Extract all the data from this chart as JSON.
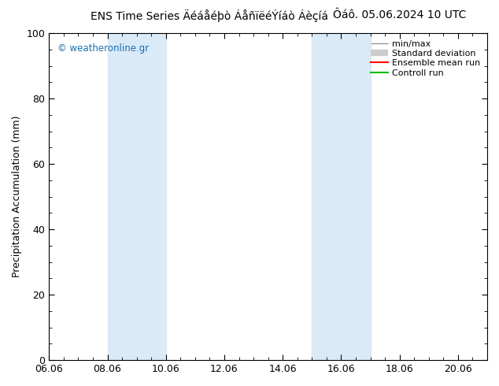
{
  "title_left": "ENS Time Series Äéáåéþò ÁåñïëéÝíáò Áèçíá",
  "title_right": "Ôáô. 05.06.2024 10 UTC",
  "ylabel": "Precipitation Accumulation (mm)",
  "watermark": "© weatheronline.gr",
  "xmin": 0.0,
  "xmax": 15.0,
  "ymin": 0,
  "ymax": 100,
  "xtick_labels": [
    "06.06",
    "08.06",
    "10.06",
    "12.06",
    "14.06",
    "16.06",
    "18.06",
    "20.06"
  ],
  "xtick_positions": [
    0.0,
    2.0,
    4.0,
    6.0,
    8.0,
    10.0,
    12.0,
    14.0
  ],
  "ytick_labels": [
    "0",
    "20",
    "40",
    "60",
    "80",
    "100"
  ],
  "ytick_positions": [
    0,
    20,
    40,
    60,
    80,
    100
  ],
  "shade_bands": [
    {
      "xstart": 2.0,
      "xend": 4.0,
      "color": "#dbeaf7"
    },
    {
      "xstart": 9.0,
      "xend": 11.0,
      "color": "#dbeaf7"
    }
  ],
  "background_color": "#ffffff",
  "plot_bg_color": "#ffffff",
  "title_fontsize": 10,
  "axis_fontsize": 9,
  "watermark_color": "#1a6faf",
  "legend_fontsize": 8
}
